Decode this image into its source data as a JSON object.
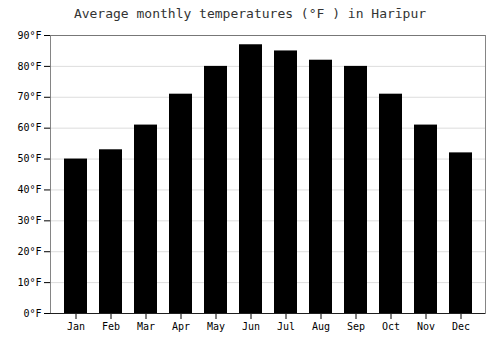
{
  "chart_data": {
    "type": "bar",
    "title": "Average monthly temperatures (°F ) in Harīpur",
    "categories": [
      "Jan",
      "Feb",
      "Mar",
      "Apr",
      "May",
      "Jun",
      "Jul",
      "Aug",
      "Sep",
      "Oct",
      "Nov",
      "Dec"
    ],
    "values": [
      50,
      53,
      61,
      71,
      80,
      87,
      85,
      82,
      80,
      71,
      61,
      52
    ],
    "ylim": [
      0,
      90
    ],
    "yticks": [
      {
        "value": 0,
        "label": "0°F"
      },
      {
        "value": 10,
        "label": "10°F"
      },
      {
        "value": 20,
        "label": "20°F"
      },
      {
        "value": 30,
        "label": "30°F"
      },
      {
        "value": 40,
        "label": "40°F"
      },
      {
        "value": 50,
        "label": "50°F"
      },
      {
        "value": 60,
        "label": "60°F"
      },
      {
        "value": 70,
        "label": "70°F"
      },
      {
        "value": 80,
        "label": "80°F"
      },
      {
        "value": 90,
        "label": "90°F"
      }
    ],
    "grid": true
  }
}
